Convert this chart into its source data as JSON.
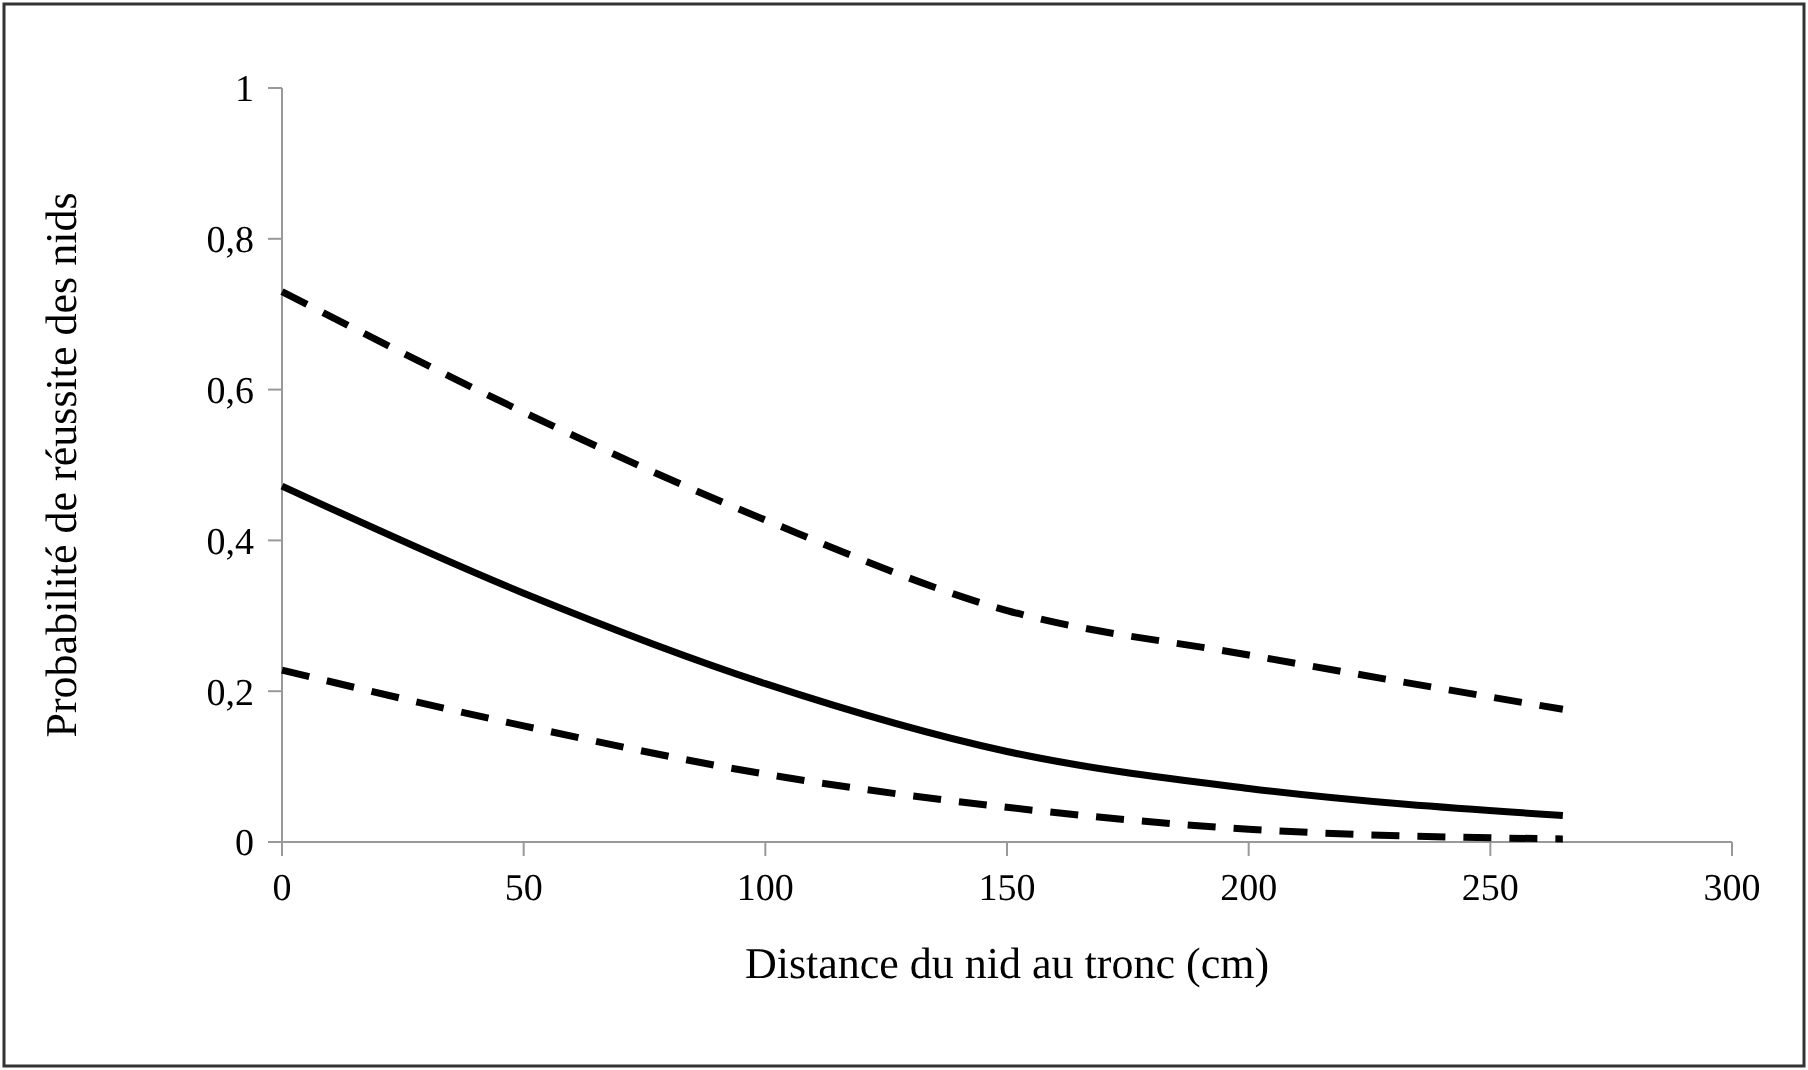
{
  "chart_data": {
    "type": "line",
    "xlabel": "Distance du nid au tronc (cm)",
    "ylabel": "Probabilité de réussite des nids",
    "x": [
      0,
      50,
      100,
      150,
      200,
      265
    ],
    "series": [
      {
        "color": "#000000",
        "line_style": "solid",
        "values": [
          0.472,
          0.33,
          0.21,
          0.12,
          0.071,
          0.035
        ]
      },
      {
        "color": "#000000",
        "line_style": "dashed",
        "values": [
          0.73,
          0.57,
          0.427,
          0.307,
          0.248,
          0.176
        ]
      },
      {
        "color": "#000000",
        "line_style": "dashed",
        "values": [
          0.228,
          0.154,
          0.09,
          0.046,
          0.017,
          0.004
        ]
      }
    ],
    "xlim": [
      0,
      300
    ],
    "xticks": [
      0,
      50,
      100,
      150,
      200,
      250,
      300
    ],
    "ylim": [
      0,
      1
    ],
    "yticks": [
      0,
      {
        "value": 0.2,
        "label": "0,2"
      },
      {
        "value": 0.4,
        "label": "0,4"
      },
      {
        "value": 0.6,
        "label": "0,6"
      },
      {
        "value": 0.8,
        "label": "0,8"
      },
      1
    ],
    "grid": false,
    "marker": "none"
  }
}
